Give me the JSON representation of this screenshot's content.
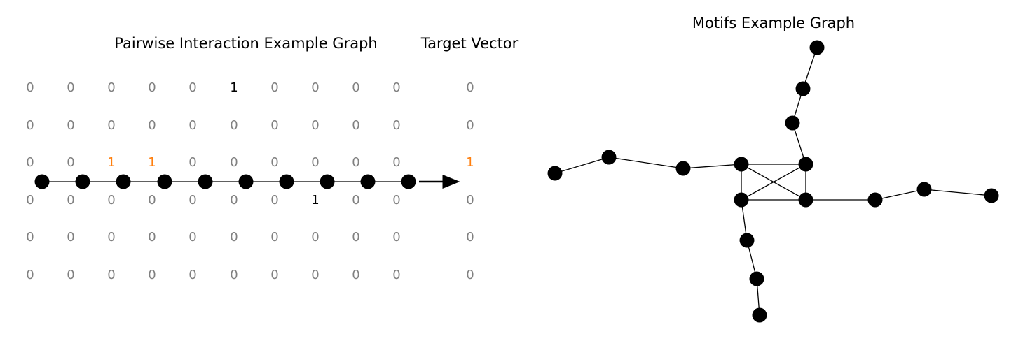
{
  "pairwise": {
    "title": "Pairwise Interaction Example Graph",
    "matrix": [
      [
        "0",
        "0",
        "0",
        "0",
        "0",
        "1",
        "0",
        "0",
        "0",
        "0"
      ],
      [
        "0",
        "0",
        "0",
        "0",
        "0",
        "0",
        "0",
        "0",
        "0",
        "0"
      ],
      [
        "0",
        "0",
        "1",
        "1",
        "0",
        "0",
        "0",
        "0",
        "0",
        "0"
      ],
      [
        "0",
        "0",
        "0",
        "0",
        "0",
        "0",
        "0",
        "1",
        "0",
        "0"
      ],
      [
        "0",
        "0",
        "0",
        "0",
        "0",
        "0",
        "0",
        "0",
        "0",
        "0"
      ],
      [
        "0",
        "0",
        "0",
        "0",
        "0",
        "0",
        "0",
        "0",
        "0",
        "0"
      ]
    ],
    "highlight_row": 2,
    "node_count": 10
  },
  "target": {
    "title": "Target Vector",
    "values": [
      "0",
      "0",
      "1",
      "0",
      "0",
      "0"
    ],
    "highlight_index": 2
  },
  "motifs": {
    "title": "Motifs Example Graph",
    "nodes": [
      "n0",
      "n1",
      "n2",
      "n3",
      "n4",
      "n5",
      "n6",
      "n7",
      "n8",
      "n9",
      "n10",
      "n11",
      "n12",
      "n13",
      "n14",
      "n15"
    ],
    "edges": [
      [
        "n0",
        "n1"
      ],
      [
        "n1",
        "n2"
      ],
      [
        "n2",
        "n3"
      ],
      [
        "n3",
        "n4"
      ],
      [
        "n3",
        "n5"
      ],
      [
        "n3",
        "n6"
      ],
      [
        "n4",
        "n5"
      ],
      [
        "n4",
        "n6"
      ],
      [
        "n5",
        "n6"
      ],
      [
        "n4",
        "n9"
      ],
      [
        "n9",
        "n10"
      ],
      [
        "n10",
        "n11"
      ],
      [
        "n6",
        "n12"
      ],
      [
        "n12",
        "n13"
      ],
      [
        "n13",
        "n14"
      ],
      [
        "n5",
        "n7"
      ],
      [
        "n7",
        "n8"
      ],
      [
        "n8",
        "n15"
      ]
    ]
  },
  "colors": {
    "node": "#000000",
    "edge": "#000000",
    "zero": "#808080",
    "one": "#000000",
    "highlight": "#ff7f0e"
  }
}
